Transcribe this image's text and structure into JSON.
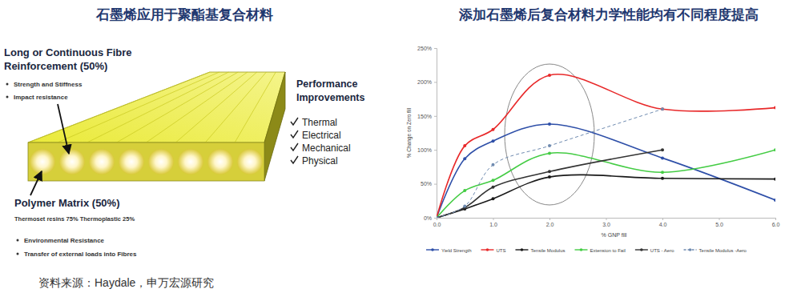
{
  "chart_data": {
    "type": "line",
    "title": "添加石墨烯后复合材料力学性能均有不同程度提高",
    "x_label": "% GNP fill",
    "y_label": "% Change on Zero fill",
    "x": [
      0,
      0.5,
      1,
      2,
      4,
      6
    ],
    "xlim": [
      0,
      6
    ],
    "xticks": [
      {
        "value": 0,
        "label": "0.0"
      },
      {
        "value": 1,
        "label": "1.0"
      },
      {
        "value": 2,
        "label": "2.0"
      },
      {
        "value": 3,
        "label": "3.0"
      },
      {
        "value": 4,
        "label": "4.0"
      },
      {
        "value": 5,
        "label": "5.0"
      },
      {
        "value": 6,
        "label": "6.0"
      }
    ],
    "ylim": [
      0,
      250
    ],
    "yticks": [
      {
        "value": 0,
        "label": "0%"
      },
      {
        "value": 50,
        "label": "50%"
      },
      {
        "value": 100,
        "label": "100%"
      },
      {
        "value": 150,
        "label": "150%"
      },
      {
        "value": 200,
        "label": "200%"
      },
      {
        "value": 250,
        "label": "250%"
      }
    ],
    "grid": false,
    "legend": "bottom",
    "series": [
      {
        "name": "Yield Strength",
        "color": "#2e4fa8",
        "marker": "circle",
        "line_style": "solid",
        "values": [
          0,
          87,
          113,
          138,
          88,
          26
        ]
      },
      {
        "name": "UTS",
        "color": "#e8292a",
        "marker": "circle",
        "line_style": "solid",
        "values": [
          0,
          106,
          130,
          210,
          160,
          162
        ]
      },
      {
        "name": "Tensile Modulus",
        "color": "#1a1a1a",
        "marker": "circle",
        "line_style": "solid",
        "values": [
          0,
          13,
          28,
          60,
          58,
          57
        ]
      },
      {
        "name": "Extension to Fail",
        "color": "#44cc44",
        "marker": "circle",
        "line_style": "solid",
        "values": [
          0,
          40,
          55,
          95,
          67,
          100
        ]
      },
      {
        "name": "UTS - Aero",
        "color": "#333333",
        "marker": "circle",
        "line_style": "solid",
        "values": [
          0,
          15,
          45,
          68,
          100,
          null
        ]
      },
      {
        "name": "Tensile Modulus -Aero",
        "color": "#6f8bb0",
        "marker": "circle",
        "line_style": "dashed",
        "values": [
          0,
          17,
          78,
          106,
          160,
          null
        ]
      }
    ]
  },
  "diagram": {
    "title": "石墨烯应用于聚酯基复合材料",
    "fibre": {
      "label_lines": [
        "Long or Continuous Fibre",
        "Reinforcement  (50%)"
      ],
      "bullets": [
        "Strength and Stiffness",
        "Impact resistance"
      ]
    },
    "performance": {
      "label_lines": [
        "Performance",
        "Improvements"
      ],
      "items": [
        "Thermal",
        "Electrical",
        "Mechanical",
        "Physical"
      ]
    },
    "matrix": {
      "label": "Polymer Matrix (50%)",
      "note": "Thermoset resins 75% Thermoplastic 25%",
      "bullets": [
        "Environmental Resistance",
        "Transfer of external loads into Fibres"
      ]
    }
  },
  "source": "资料来源：Haydale，申万宏源研究"
}
